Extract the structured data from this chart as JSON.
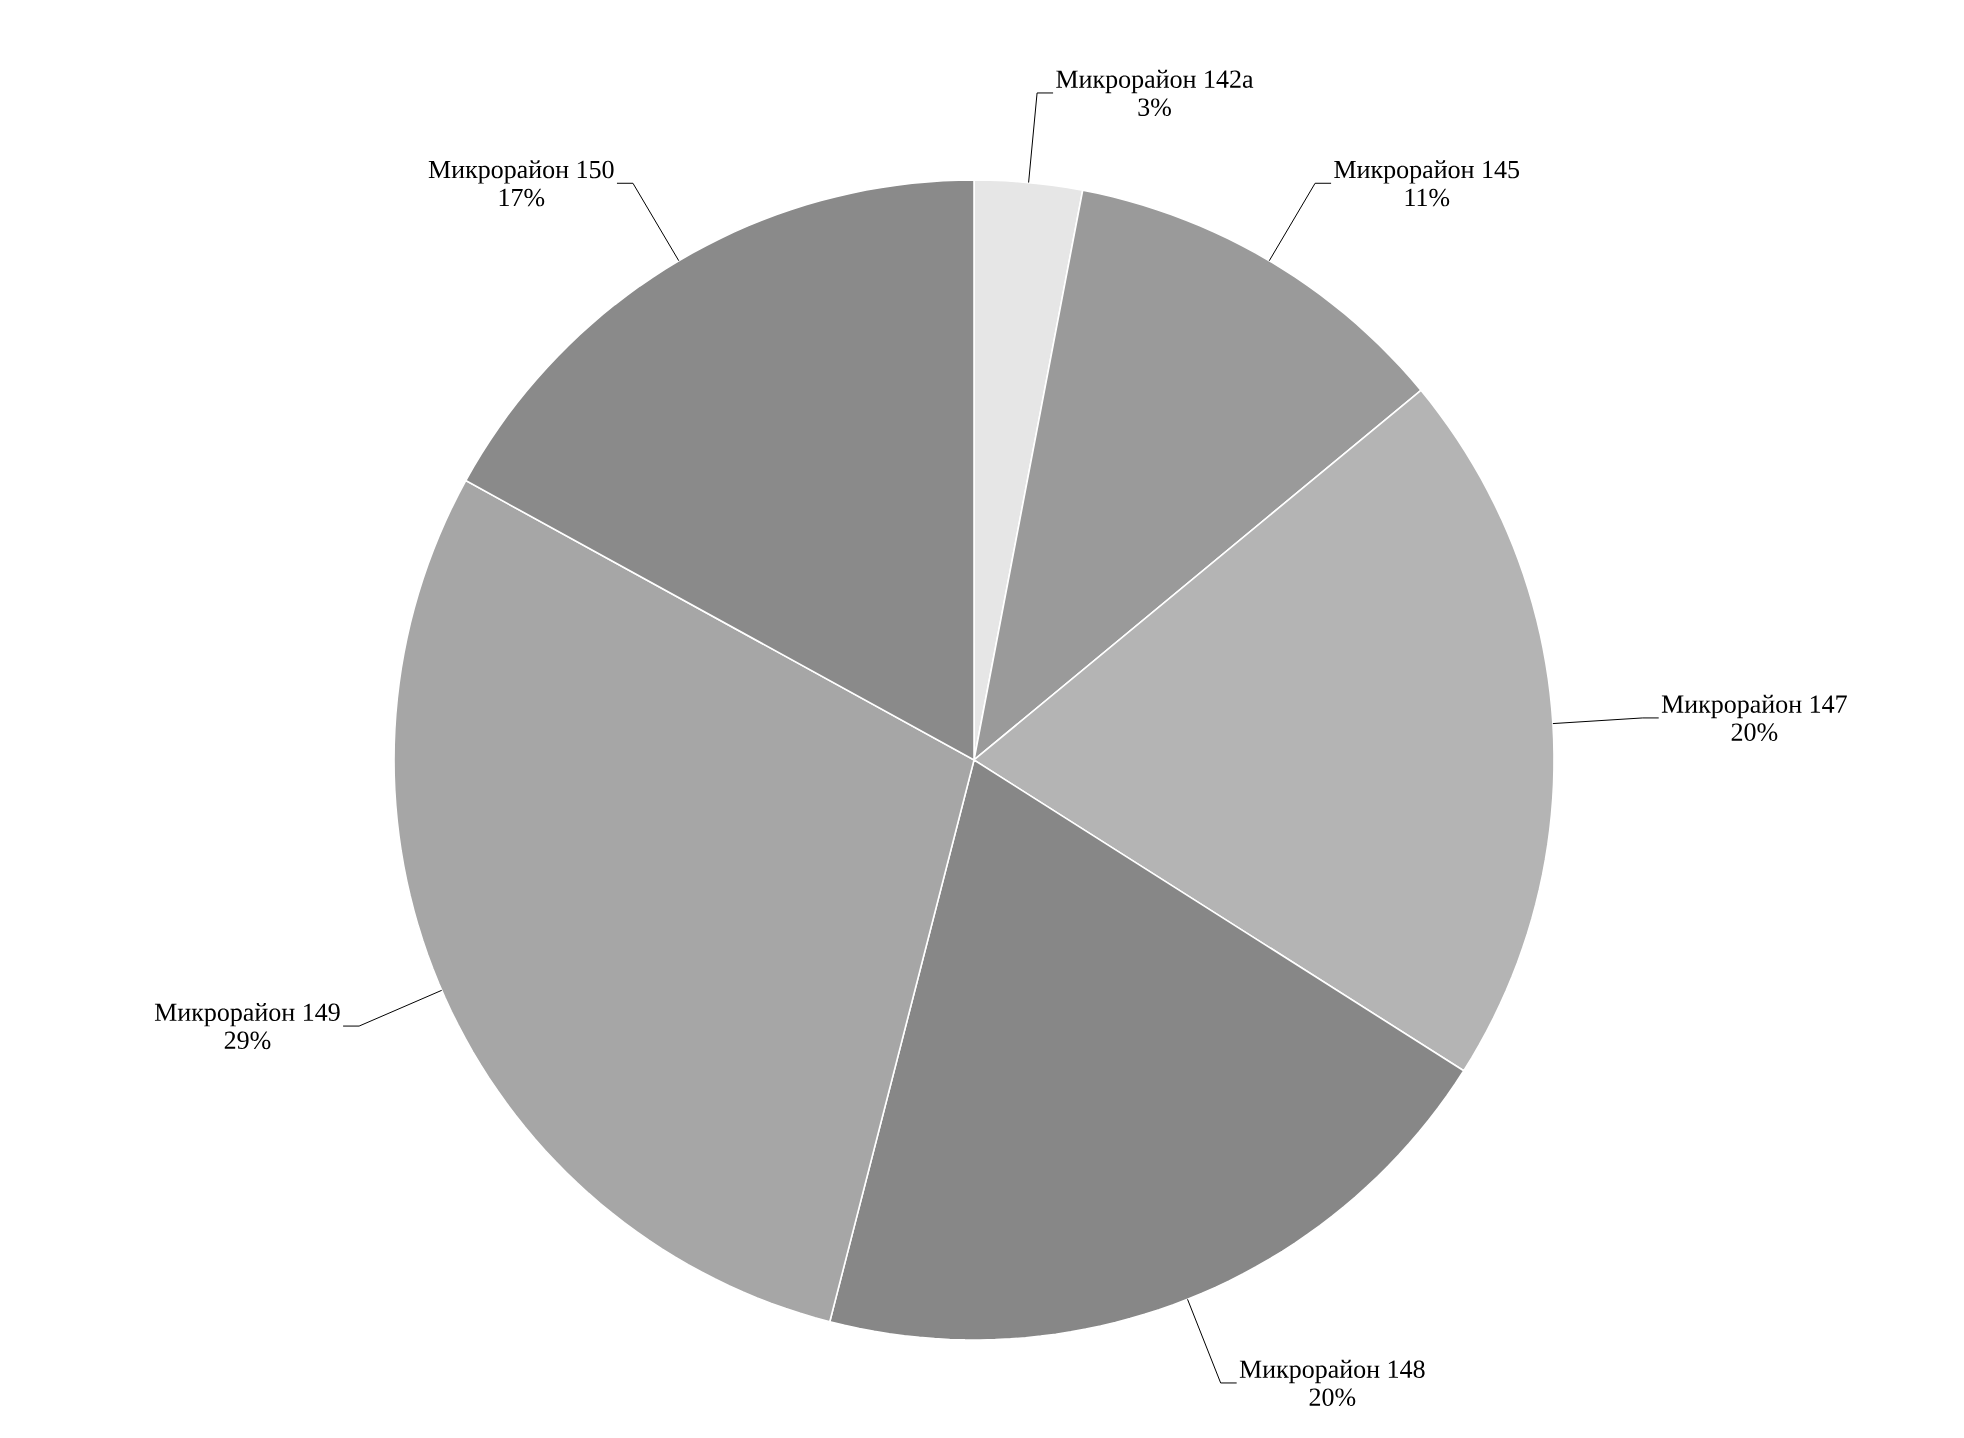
{
  "chart_data": {
    "type": "pie",
    "categories": [
      "Микрорайон 142а",
      "Микрорайон 145",
      "Микрорайон 147",
      "Микрорайон 148",
      "Микрорайон 149",
      "Микрорайон 150"
    ],
    "values": [
      3,
      11,
      20,
      20,
      29,
      17
    ],
    "value_labels": [
      "3%",
      "11%",
      "20%",
      "20%",
      "29%",
      "17%"
    ],
    "colors": [
      "#e6e6e6",
      "#9a9a9a",
      "#b4b4b4",
      "#878787",
      "#a6a6a6",
      "#8a8a8a"
    ]
  }
}
